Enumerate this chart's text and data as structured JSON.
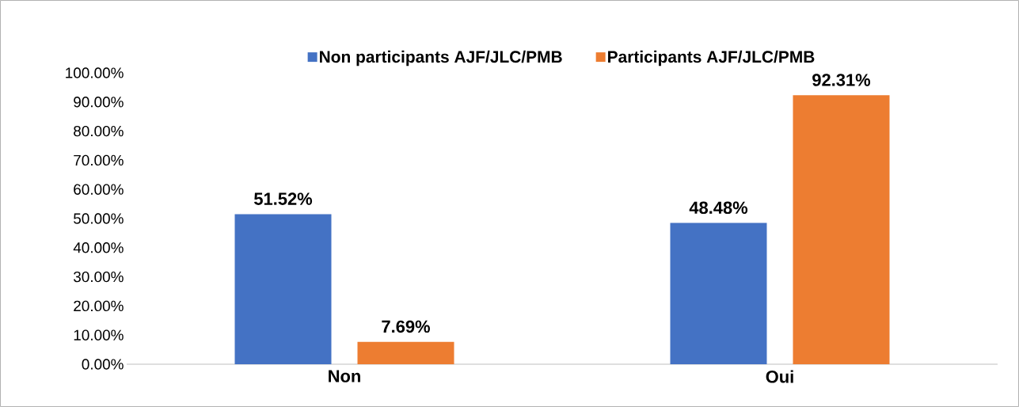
{
  "chart_data": {
    "type": "bar",
    "categories": [
      "Non",
      "Oui"
    ],
    "series": [
      {
        "name": "Non participants AJF/JLC/PMB",
        "color": "#4472c4",
        "values": [
          51.52,
          48.48
        ],
        "value_labels": [
          "51.52%",
          "48.48%"
        ]
      },
      {
        "name": "Participants AJF/JLC/PMB",
        "color": "#ed7d31",
        "values": [
          7.69,
          92.31
        ],
        "value_labels": [
          "7.69%",
          "92.31%"
        ]
      }
    ],
    "ylim": [
      0,
      100
    ],
    "yticks": [
      {
        "value": 0,
        "label": "0.00%"
      },
      {
        "value": 10,
        "label": "10.00%"
      },
      {
        "value": 20,
        "label": "20.00%"
      },
      {
        "value": 30,
        "label": "30.00%"
      },
      {
        "value": 40,
        "label": "40.00%"
      },
      {
        "value": 50,
        "label": "50.00%"
      },
      {
        "value": 60,
        "label": "60.00%"
      },
      {
        "value": 70,
        "label": "70.00%"
      },
      {
        "value": 80,
        "label": "80.00%"
      },
      {
        "value": 90,
        "label": "90.00%"
      },
      {
        "value": 100,
        "label": "100.00%"
      }
    ],
    "grid": false,
    "legend": "top"
  }
}
